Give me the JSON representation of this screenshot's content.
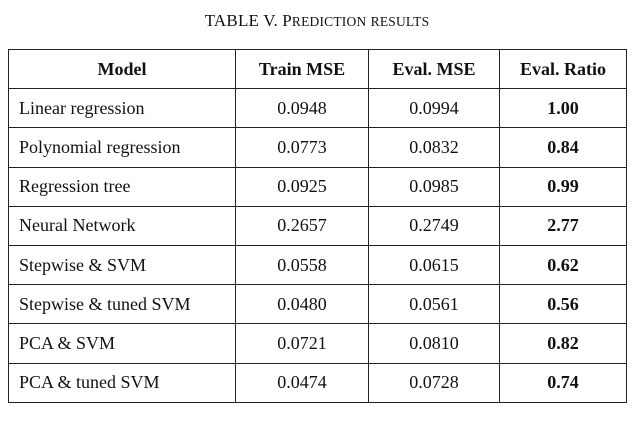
{
  "caption": {
    "label": "TABLE V.",
    "title_first": "P",
    "title_rest_1": "REDICTION",
    "title_space": " ",
    "title_second": "RESULTS"
  },
  "table": {
    "headers": [
      "Model",
      "Train MSE",
      "Eval. MSE",
      "Eval. Ratio"
    ],
    "rows": [
      {
        "model": "Linear regression",
        "train_mse": "0.0948",
        "eval_mse": "0.0994",
        "eval_ratio": "1.00"
      },
      {
        "model": "Polynomial regression",
        "train_mse": "0.0773",
        "eval_mse": "0.0832",
        "eval_ratio": "0.84"
      },
      {
        "model": "Regression tree",
        "train_mse": "0.0925",
        "eval_mse": "0.0985",
        "eval_ratio": "0.99"
      },
      {
        "model": "Neural Network",
        "train_mse": "0.2657",
        "eval_mse": "0.2749",
        "eval_ratio": "2.77"
      },
      {
        "model": "Stepwise & SVM",
        "train_mse": "0.0558",
        "eval_mse": "0.0615",
        "eval_ratio": "0.62"
      },
      {
        "model": "Stepwise & tuned SVM",
        "train_mse": "0.0480",
        "eval_mse": "0.0561",
        "eval_ratio": "0.56"
      },
      {
        "model": "PCA & SVM",
        "train_mse": "0.0721",
        "eval_mse": "0.0810",
        "eval_ratio": "0.82"
      },
      {
        "model": "PCA & tuned SVM",
        "train_mse": "0.0474",
        "eval_mse": "0.0728",
        "eval_ratio": "0.74"
      }
    ]
  }
}
